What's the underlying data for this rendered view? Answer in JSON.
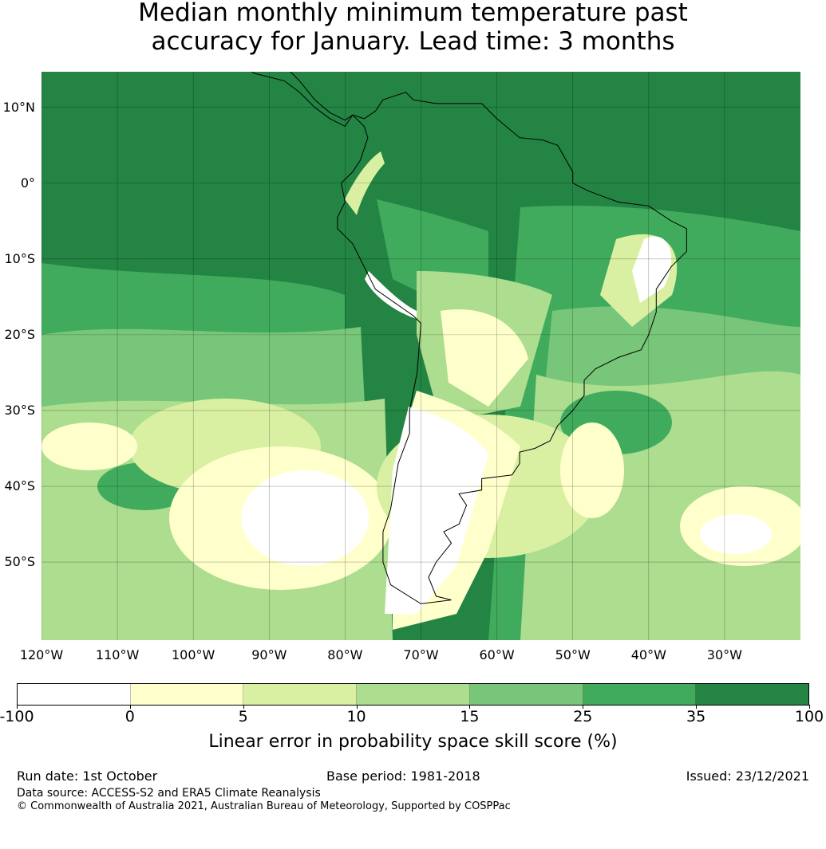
{
  "title_lines": [
    "Median monthly minimum temperature past",
    "accuracy for January. Lead time: 3 months"
  ],
  "map": {
    "extent_lon": [
      -120,
      -20
    ],
    "extent_lat": [
      -60.3,
      14.7
    ],
    "lat_ticks": [
      {
        "value": 10,
        "label": "10°N"
      },
      {
        "value": 0,
        "label": "0°"
      },
      {
        "value": -10,
        "label": "10°S"
      },
      {
        "value": -20,
        "label": "20°S"
      },
      {
        "value": -30,
        "label": "30°S"
      },
      {
        "value": -40,
        "label": "40°S"
      },
      {
        "value": -50,
        "label": "50°S"
      }
    ],
    "lon_ticks": [
      {
        "value": -120,
        "label": "120°W"
      },
      {
        "value": -110,
        "label": "110°W"
      },
      {
        "value": -100,
        "label": "100°W"
      },
      {
        "value": -90,
        "label": "90°W"
      },
      {
        "value": -80,
        "label": "80°W"
      },
      {
        "value": -70,
        "label": "70°W"
      },
      {
        "value": -60,
        "label": "60°W"
      },
      {
        "value": -50,
        "label": "50°W"
      },
      {
        "value": -40,
        "label": "40°W"
      },
      {
        "value": -30,
        "label": "30°W"
      }
    ]
  },
  "colorbar": {
    "boundaries": [
      "-100",
      "0",
      "5",
      "10",
      "15",
      "25",
      "35",
      "100"
    ],
    "colors": [
      "#ffffff",
      "#ffffcc",
      "#d9f0a3",
      "#addd8e",
      "#78c679",
      "#41ab5d",
      "#238443"
    ],
    "label": "Linear error in probability space skill score (%)"
  },
  "footer": {
    "run_date": "Run date: 1st October",
    "base_period": "Base period: 1981-2018",
    "issued": "Issued: 23/12/2021",
    "data_source": "Data source: ACCESS-S2 and ERA5 Climate Reanalysis",
    "copyright": "© Commonwealth of Australia 2021, Australian Bureau of Meteorology, Supported by COSPPac"
  }
}
